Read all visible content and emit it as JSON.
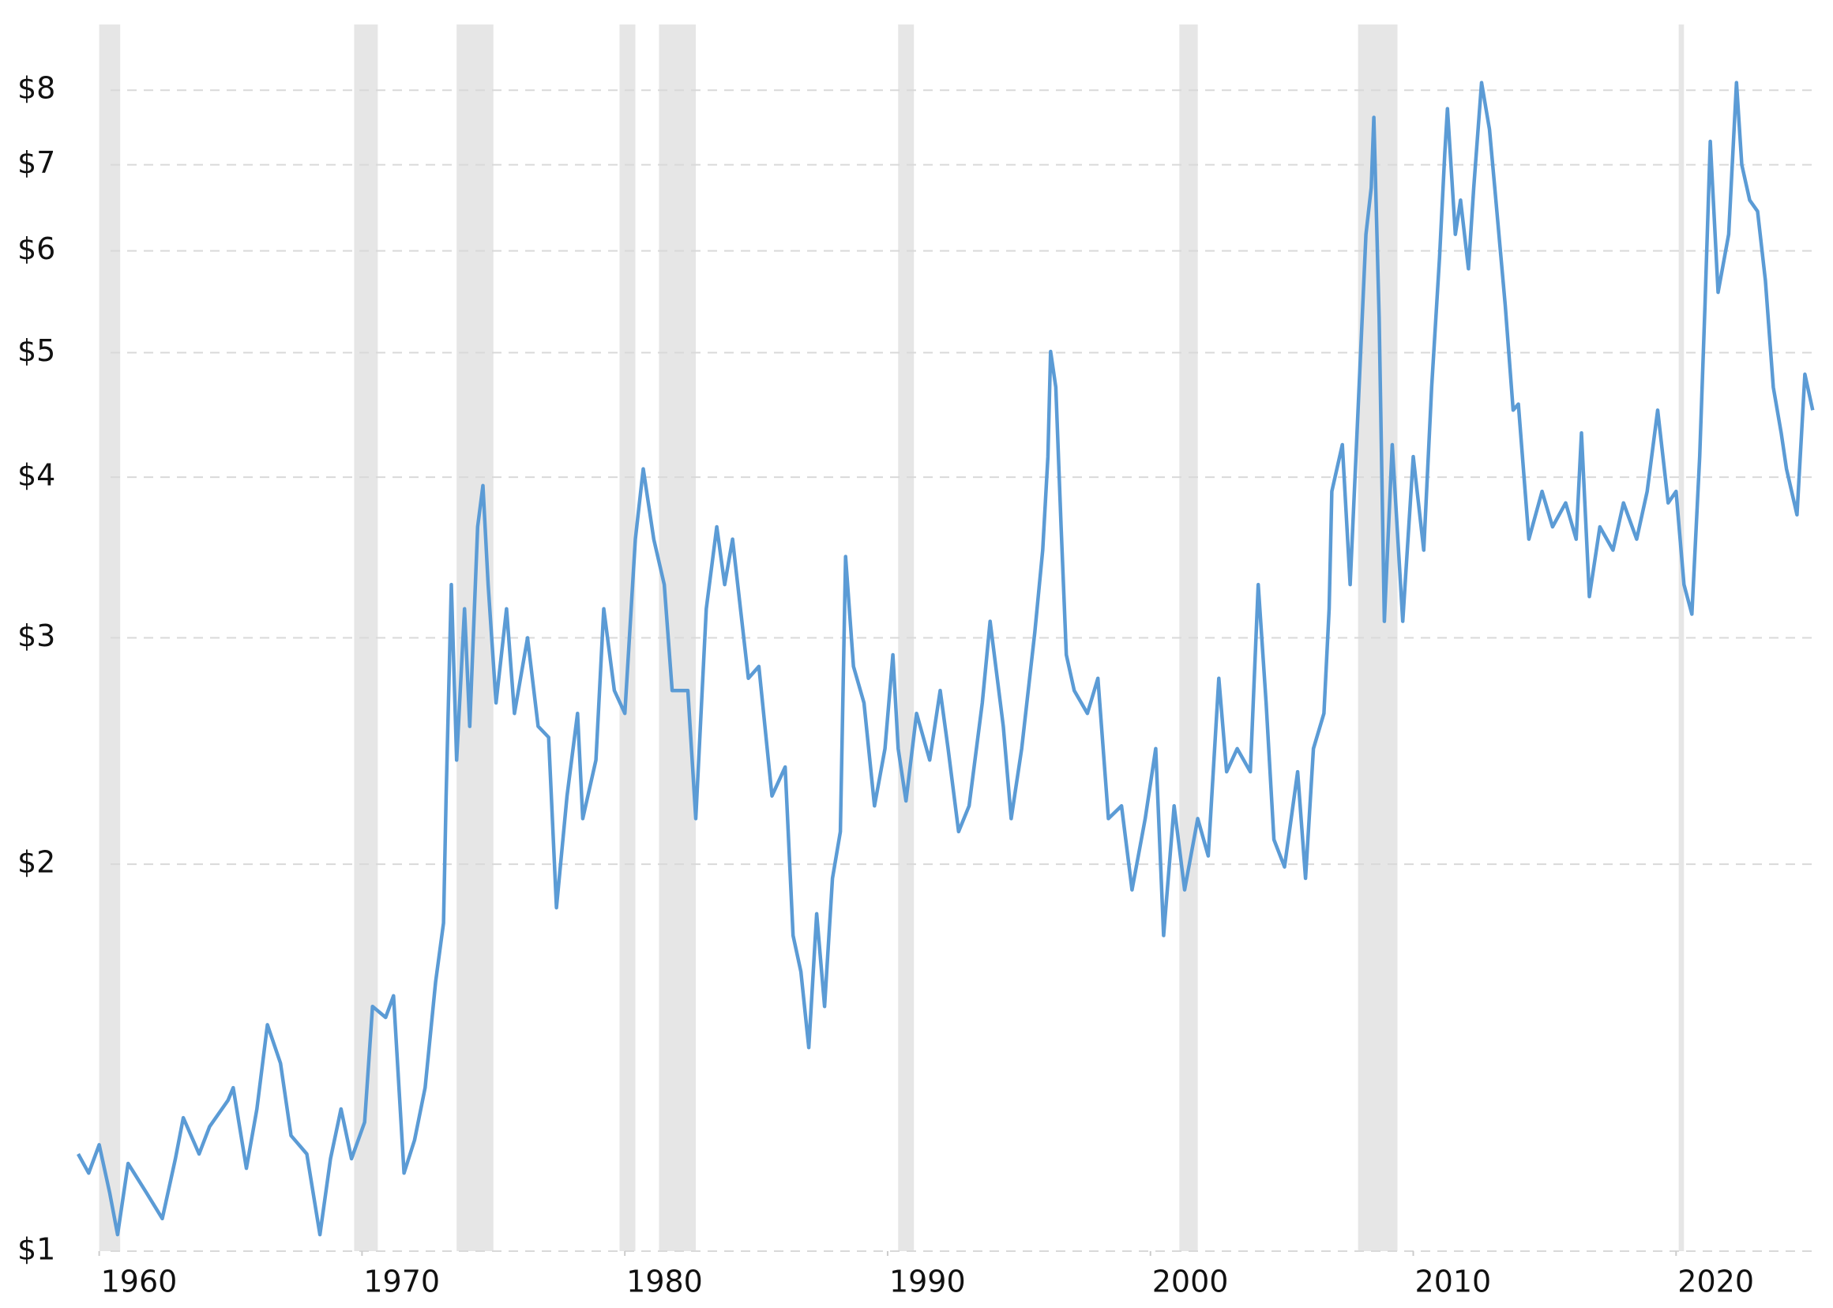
{
  "chart_data": {
    "type": "line",
    "log_y": true,
    "grid": true,
    "color": "#5b9bd5",
    "recession_color": "#e6e6e6",
    "xlim": [
      1958.9,
      2025.4
    ],
    "xticks": [
      1960,
      1970,
      1980,
      1990,
      2000,
      2010,
      2020
    ],
    "ylim": [
      1,
      9
    ],
    "yticks": [
      {
        "value": 1,
        "label": "$1"
      },
      {
        "value": 2,
        "label": "$2"
      },
      {
        "value": 3,
        "label": "$3"
      },
      {
        "value": 4,
        "label": "$4"
      },
      {
        "value": 5,
        "label": "$5"
      },
      {
        "value": 6,
        "label": "$6"
      },
      {
        "value": 7,
        "label": "$7"
      },
      {
        "value": 8,
        "label": "$8"
      }
    ],
    "recessions": [
      [
        1960.0,
        1960.8
      ],
      [
        1969.7,
        1970.6
      ],
      [
        1973.6,
        1975.0
      ],
      [
        1979.8,
        1980.4
      ],
      [
        1981.3,
        1982.7
      ],
      [
        1990.4,
        1991.0
      ],
      [
        2001.1,
        2001.8
      ],
      [
        2007.9,
        2009.4
      ],
      [
        2020.1,
        2020.3
      ]
    ],
    "x": [
      1959.2,
      1959.6,
      1960.0,
      1960.4,
      1960.7,
      1961.1,
      1961.8,
      1962.4,
      1962.9,
      1963.2,
      1963.8,
      1964.2,
      1964.9,
      1965.1,
      1965.6,
      1966.0,
      1966.4,
      1966.9,
      1967.3,
      1967.9,
      1968.4,
      1968.8,
      1969.2,
      1969.6,
      1970.1,
      1970.4,
      1970.9,
      1971.2,
      1971.6,
      1972.0,
      1972.4,
      1972.8,
      1973.1,
      1973.2,
      1973.4,
      1973.6,
      1973.9,
      1974.1,
      1974.4,
      1974.6,
      1974.8,
      1975.1,
      1975.5,
      1975.8,
      1976.3,
      1976.7,
      1977.1,
      1977.4,
      1977.8,
      1978.2,
      1978.4,
      1978.9,
      1979.2,
      1979.6,
      1980.0,
      1980.4,
      1980.7,
      1981.1,
      1981.5,
      1981.8,
      1982.4,
      1982.7,
      1983.1,
      1983.5,
      1983.8,
      1984.1,
      1984.7,
      1985.1,
      1985.6,
      1986.1,
      1986.4,
      1986.7,
      1987.0,
      1987.3,
      1987.6,
      1987.9,
      1988.2,
      1988.4,
      1988.7,
      1989.1,
      1989.5,
      1989.9,
      1990.2,
      1990.4,
      1990.7,
      1991.1,
      1991.6,
      1992.0,
      1992.3,
      1992.7,
      1993.1,
      1993.6,
      1993.9,
      1994.4,
      1994.7,
      1995.1,
      1995.6,
      1995.9,
      1996.1,
      1996.2,
      1996.4,
      1996.6,
      1996.8,
      1997.1,
      1997.6,
      1998.0,
      1998.4,
      1998.9,
      1999.3,
      1999.8,
      2000.2,
      2000.5,
      2000.9,
      2001.3,
      2001.8,
      2002.2,
      2002.6,
      2002.9,
      2003.3,
      2003.8,
      2004.1,
      2004.4,
      2004.7,
      2005.1,
      2005.6,
      2005.9,
      2006.2,
      2006.6,
      2006.8,
      2006.9,
      2007.3,
      2007.6,
      2007.9,
      2008.2,
      2008.4,
      2008.5,
      2008.7,
      2008.9,
      2009.2,
      2009.6,
      2010.0,
      2010.4,
      2010.7,
      2011.0,
      2011.2,
      2011.3,
      2011.6,
      2011.8,
      2012.1,
      2012.3,
      2012.6,
      2012.9,
      2013.1,
      2013.5,
      2013.8,
      2014.0,
      2014.4,
      2014.9,
      2015.3,
      2015.8,
      2016.2,
      2016.4,
      2016.7,
      2017.1,
      2017.6,
      2018.0,
      2018.5,
      2018.9,
      2019.3,
      2019.7,
      2020.0,
      2020.3,
      2020.6,
      2020.9,
      2021.1,
      2021.3,
      2021.6,
      2022.0,
      2022.3,
      2022.5,
      2022.8,
      2023.1,
      2023.4,
      2023.7,
      2024.0,
      2024.2,
      2024.6,
      2024.9,
      2025.2
    ],
    "values": [
      1.19,
      1.15,
      1.21,
      1.11,
      1.03,
      1.17,
      1.11,
      1.06,
      1.18,
      1.27,
      1.19,
      1.25,
      1.31,
      1.34,
      1.16,
      1.29,
      1.5,
      1.4,
      1.23,
      1.19,
      1.03,
      1.18,
      1.29,
      1.18,
      1.26,
      1.55,
      1.52,
      1.58,
      1.15,
      1.22,
      1.34,
      1.62,
      1.8,
      2.26,
      3.3,
      2.41,
      3.16,
      2.56,
      3.66,
      3.94,
      3.3,
      2.67,
      3.16,
      2.62,
      3.0,
      2.56,
      2.51,
      1.85,
      2.26,
      2.62,
      2.17,
      2.41,
      3.16,
      2.73,
      2.62,
      3.58,
      4.06,
      3.58,
      3.3,
      2.73,
      2.73,
      2.17,
      3.16,
      3.66,
      3.3,
      3.58,
      2.79,
      2.85,
      2.26,
      2.38,
      1.76,
      1.65,
      1.44,
      1.83,
      1.55,
      1.95,
      2.12,
      3.47,
      2.85,
      2.67,
      2.22,
      2.46,
      2.91,
      2.46,
      2.24,
      2.62,
      2.41,
      2.73,
      2.46,
      2.12,
      2.22,
      2.67,
      3.09,
      2.56,
      2.17,
      2.46,
      3.03,
      3.51,
      4.15,
      5.01,
      4.7,
      3.66,
      2.91,
      2.73,
      2.62,
      2.79,
      2.17,
      2.22,
      1.91,
      2.17,
      2.46,
      1.76,
      2.22,
      1.91,
      2.17,
      2.03,
      2.79,
      2.36,
      2.46,
      2.36,
      3.3,
      2.67,
      2.09,
      1.99,
      2.36,
      1.95,
      2.46,
      2.62,
      3.16,
      3.9,
      4.24,
      3.3,
      4.51,
      6.18,
      6.72,
      7.62,
      5.33,
      3.09,
      4.24,
      3.09,
      4.15,
      3.51,
      4.7,
      5.93,
      7.14,
      7.74,
      6.18,
      6.57,
      5.81,
      6.72,
      8.11,
      7.46,
      6.72,
      5.44,
      4.51,
      4.56,
      3.58,
      3.9,
      3.66,
      3.82,
      3.58,
      4.33,
      3.23,
      3.66,
      3.51,
      3.82,
      3.58,
      3.9,
      4.51,
      3.82,
      3.9,
      3.3,
      3.13,
      4.15,
      5.44,
      7.3,
      5.57,
      6.18,
      8.11,
      7.0,
      6.57,
      6.44,
      5.69,
      4.7,
      4.33,
      4.06,
      3.74,
      4.81,
      4.51
    ]
  }
}
